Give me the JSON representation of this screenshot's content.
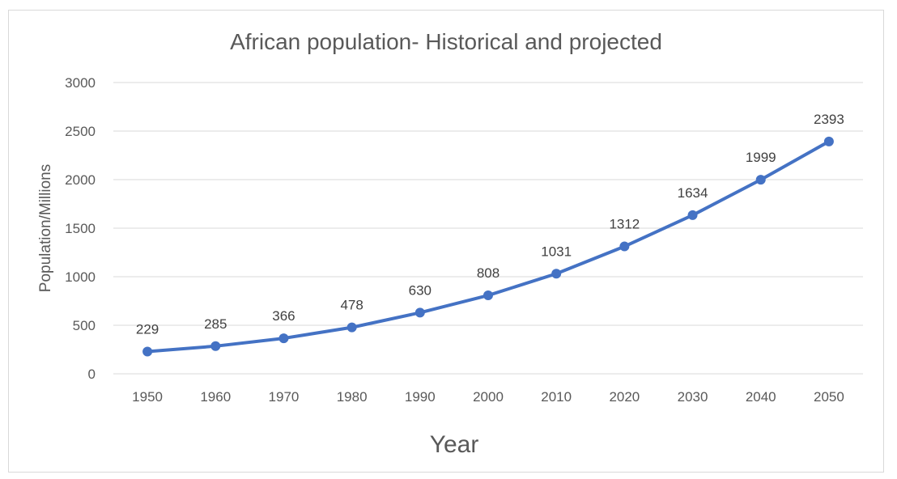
{
  "chart_data": {
    "type": "line",
    "title": "African population- Historical and projected",
    "xlabel": "Year",
    "ylabel": "Population/Millions",
    "categories": [
      "1950",
      "1960",
      "1970",
      "1980",
      "1990",
      "2000",
      "2010",
      "2020",
      "2030",
      "2040",
      "2050"
    ],
    "series": [
      {
        "name": "African population",
        "values": [
          229,
          285,
          366,
          478,
          630,
          808,
          1031,
          1312,
          1634,
          1999,
          2393
        ],
        "color": "#4472c4"
      }
    ],
    "ylim": [
      0,
      3000
    ],
    "yticks": [
      0,
      500,
      1000,
      1500,
      2000,
      2500,
      3000
    ],
    "grid": true,
    "legend": "none"
  }
}
